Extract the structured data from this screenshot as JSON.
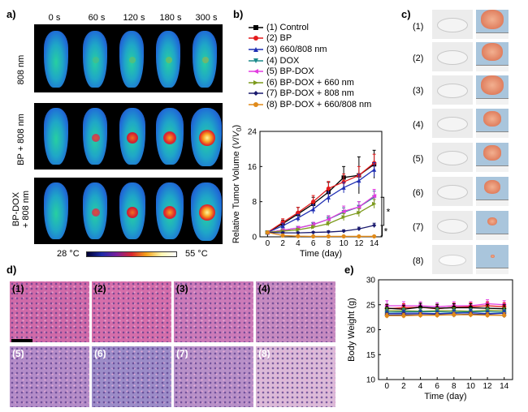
{
  "panels": {
    "a": "a)",
    "b": "b)",
    "c": "c)",
    "d": "d)",
    "e": "e)"
  },
  "panel_a": {
    "times": [
      "0 s",
      "60 s",
      "120 s",
      "180 s",
      "300 s"
    ],
    "rows": [
      "808 nm",
      "BP + 808 nm",
      "BP-DOX\n+ 808 nm"
    ],
    "colorbar_min": "28 °C",
    "colorbar_max": "55 °C"
  },
  "panel_c": {
    "labels": [
      "(1)",
      "(2)",
      "(3)",
      "(4)",
      "(5)",
      "(6)",
      "(7)",
      "(8)"
    ]
  },
  "panel_d": {
    "labels": [
      "(1)",
      "(2)",
      "(3)",
      "(4)",
      "(5)",
      "(6)",
      "(7)",
      "(8)"
    ]
  },
  "chart_data": [
    {
      "type": "line",
      "panel": "b",
      "xlabel": "Time (day)",
      "ylabel": "Relative Tumor Volume (V/V0)",
      "x": [
        0,
        2,
        4,
        6,
        8,
        10,
        12,
        14
      ],
      "xlim": [
        -1,
        15
      ],
      "ylim": [
        0,
        24
      ],
      "xticks": [
        0,
        2,
        4,
        6,
        8,
        10,
        12,
        14
      ],
      "yticks": [
        0,
        8,
        16,
        24
      ],
      "significance": [
        "*",
        "*"
      ],
      "series": [
        {
          "name": "(1) Control",
          "color": "#000000",
          "marker": "square",
          "values": [
            1,
            3,
            5.2,
            7.5,
            10.2,
            13.5,
            14,
            16.5
          ],
          "errors": [
            0.3,
            0.8,
            1.5,
            1.5,
            2.2,
            2.5,
            4.2,
            3.2
          ]
        },
        {
          "name": "(2) BP",
          "color": "#e41a1c",
          "marker": "circle",
          "values": [
            1,
            3.3,
            5.5,
            8,
            11,
            12.5,
            14,
            16.8
          ],
          "errors": [
            0.3,
            0.8,
            1.2,
            1.4,
            1.6,
            1.8,
            2,
            2
          ]
        },
        {
          "name": "(3) 660/808 nm",
          "color": "#1f2fb4",
          "marker": "triangle",
          "values": [
            1,
            2.5,
            4.3,
            6.3,
            9,
            11.2,
            12.8,
            15.3
          ],
          "errors": [
            0.3,
            0.6,
            0.8,
            1,
            1.2,
            1.2,
            1.4,
            1.6
          ]
        },
        {
          "name": "(4) DOX",
          "color": "#1a8a8a",
          "marker": "triangle-down",
          "values": [
            1,
            1.5,
            2,
            2.8,
            4,
            5.6,
            6.8,
            9
          ],
          "errors": [
            0.2,
            0.3,
            0.4,
            0.5,
            0.7,
            1,
            1.2,
            1.4
          ]
        },
        {
          "name": "(5) BP-DOX",
          "color": "#e23ce0",
          "marker": "triangle-left",
          "values": [
            1,
            1.5,
            2,
            2.8,
            4,
            5.8,
            6.8,
            9.3
          ],
          "errors": [
            0.2,
            0.3,
            0.4,
            0.5,
            0.8,
            1.2,
            1.2,
            1.5
          ]
        },
        {
          "name": "(6) BP-DOX + 660 nm",
          "color": "#7c9a1c",
          "marker": "triangle-right",
          "values": [
            1,
            1.3,
            1.6,
            2.2,
            3,
            4.5,
            5.5,
            7.5
          ],
          "errors": [
            0.2,
            0.2,
            0.3,
            0.4,
            0.5,
            0.8,
            0.9,
            1
          ]
        },
        {
          "name": "(7) BP-DOX + 808 nm",
          "color": "#1a1a6e",
          "marker": "diamond",
          "values": [
            1,
            0.9,
            0.9,
            1,
            1.1,
            1.3,
            1.8,
            2.6
          ],
          "errors": [
            0.2,
            0.2,
            0.2,
            0.2,
            0.3,
            0.3,
            0.4,
            0.5
          ]
        },
        {
          "name": "(8) BP-DOX + 660/808 nm",
          "color": "#e08a1a",
          "marker": "circle",
          "values": [
            1,
            0.3,
            0.15,
            0.1,
            0.1,
            0.1,
            0.1,
            0.1
          ],
          "errors": [
            0.1,
            0.1,
            0.05,
            0.05,
            0.05,
            0.05,
            0.05,
            0.05
          ]
        }
      ]
    },
    {
      "type": "line",
      "panel": "e",
      "xlabel": "Time (day)",
      "ylabel": "Body Weight (g)",
      "x": [
        0,
        2,
        4,
        6,
        8,
        10,
        12,
        14
      ],
      "xlim": [
        -1,
        15
      ],
      "ylim": [
        10,
        30
      ],
      "xticks": [
        0,
        2,
        4,
        6,
        8,
        10,
        12,
        14
      ],
      "yticks": [
        10,
        15,
        20,
        25,
        30
      ],
      "series": [
        {
          "color": "#e23ce0",
          "values": [
            24.8,
            24.8,
            24.8,
            24.6,
            24.8,
            24.8,
            25.2,
            25
          ],
          "errors": [
            1,
            0.8,
            0.8,
            0.8,
            0.8,
            0.8,
            0.8,
            0.8
          ]
        },
        {
          "color": "#e41a1c",
          "values": [
            24.2,
            24.4,
            24.5,
            24.2,
            24.5,
            24.6,
            24.8,
            24.6
          ],
          "errors": [
            0.8,
            0.8,
            0.8,
            0.8,
            0.8,
            0.8,
            0.8,
            0.8
          ]
        },
        {
          "color": "#000000",
          "values": [
            24.3,
            24.1,
            24.5,
            24.3,
            24.4,
            24.4,
            24.3,
            24.2
          ],
          "errors": [
            0.8,
            0.8,
            0.8,
            0.8,
            0.8,
            0.8,
            0.8,
            0.8
          ]
        },
        {
          "color": "#7c9a1c",
          "values": [
            23.8,
            23.8,
            23.7,
            23.8,
            23.8,
            23.7,
            23.9,
            23.8
          ],
          "errors": [
            0.6,
            0.6,
            0.6,
            0.6,
            0.6,
            0.6,
            0.6,
            0.6
          ]
        },
        {
          "color": "#1a8a8a",
          "values": [
            23.5,
            23.6,
            23.6,
            23.6,
            23.5,
            23.6,
            23.6,
            23.5
          ],
          "errors": [
            0.6,
            0.6,
            0.6,
            0.6,
            0.6,
            0.6,
            0.6,
            0.6
          ]
        },
        {
          "color": "#1f2fb4",
          "values": [
            23.2,
            23.3,
            23.3,
            23.2,
            23.3,
            23.4,
            23.2,
            23.3
          ],
          "errors": [
            0.6,
            0.6,
            0.6,
            0.6,
            0.6,
            0.6,
            0.6,
            0.6
          ]
        },
        {
          "color": "#1a1a6e",
          "values": [
            22.9,
            23,
            23,
            23,
            23,
            23.1,
            23,
            22.9
          ],
          "errors": [
            0.5,
            0.5,
            0.5,
            0.5,
            0.5,
            0.5,
            0.5,
            0.5
          ]
        },
        {
          "color": "#e08a1a",
          "values": [
            22.8,
            22.8,
            22.9,
            22.9,
            23,
            23,
            22.9,
            22.9
          ],
          "errors": [
            0.5,
            0.5,
            0.5,
            0.5,
            0.5,
            0.5,
            0.5,
            0.5
          ]
        }
      ]
    }
  ]
}
